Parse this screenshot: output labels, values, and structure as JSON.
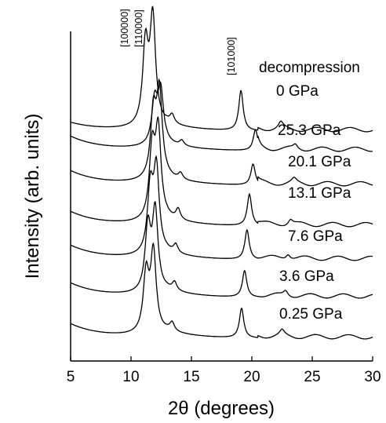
{
  "chart_data": {
    "type": "line",
    "title": "",
    "xlabel": "2θ (degrees)",
    "ylabel": "Intensity (arb. units)",
    "xlim": [
      5,
      30
    ],
    "xticks": [
      5,
      10,
      15,
      20,
      25,
      30
    ],
    "grid": false,
    "legend": "none",
    "mode_label": "decompression",
    "peak_labels": [
      {
        "text": "[100000]",
        "x": 11.2
      },
      {
        "text": "[110000]",
        "x": 11.8
      },
      {
        "text": "[101000]",
        "x": 19.1
      }
    ],
    "series": [
      {
        "label": "0.25 GPa",
        "peaks": [
          11.25,
          11.85,
          13.4,
          19.15,
          22.5
        ],
        "heights": [
          0.55,
          0.75,
          0.08,
          0.28,
          0.05
        ]
      },
      {
        "label": "3.6 GPa",
        "peaks": [
          11.4,
          12.0,
          13.6,
          19.4,
          22.8
        ],
        "heights": [
          0.6,
          0.75,
          0.08,
          0.25,
          0.05
        ]
      },
      {
        "label": "7.6 GPa",
        "peaks": [
          11.6,
          12.1,
          13.7,
          19.6,
          23.0
        ],
        "heights": [
          0.6,
          0.78,
          0.08,
          0.28,
          0.05
        ]
      },
      {
        "label": "13.1 GPa",
        "peaks": [
          11.75,
          12.25,
          13.9,
          19.8,
          23.2
        ],
        "heights": [
          0.65,
          0.82,
          0.1,
          0.3,
          0.05
        ]
      },
      {
        "label": "20.1 GPa",
        "peaks": [
          11.85,
          12.35,
          14.1,
          20.1,
          23.5
        ],
        "heights": [
          0.6,
          0.8,
          0.06,
          0.2,
          0.04
        ]
      },
      {
        "label": "25.3 GPa",
        "peaks": [
          11.95,
          12.45,
          14.2,
          20.3,
          23.6
        ],
        "heights": [
          0.4,
          0.5,
          0.05,
          0.2,
          0.04
        ]
      },
      {
        "label": "0 GPa",
        "peaks": [
          11.2,
          11.8,
          13.4,
          19.1,
          22.4
        ],
        "heights": [
          0.75,
          1.0,
          0.08,
          0.38,
          0.06
        ]
      }
    ]
  }
}
